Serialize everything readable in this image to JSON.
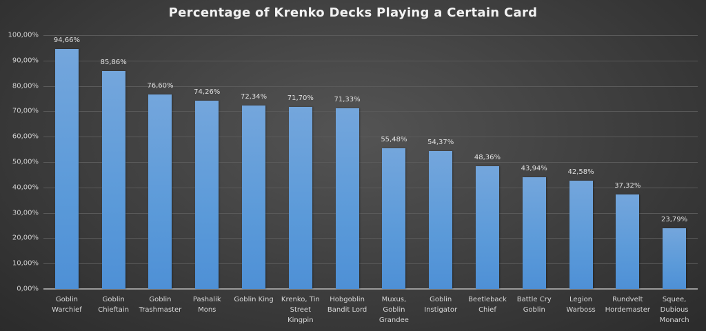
{
  "chart_data": {
    "type": "bar",
    "title": "Percentage of Krenko Decks Playing a Certain Card",
    "xlabel": "",
    "ylabel": "",
    "ylim": [
      0,
      100
    ],
    "grid": true,
    "legend": null,
    "bar_color": "#5b9bd5",
    "categories": [
      "Goblin Warchief",
      "Goblin Chieftain",
      "Goblin Trashmaster",
      "Pashalik Mons",
      "Goblin King",
      "Krenko, Tin Street Kingpin",
      "Hobgoblin Bandit Lord",
      "Muxus, Goblin Grandee",
      "Goblin Instigator",
      "Beetleback Chief",
      "Battle Cry Goblin",
      "Legion Warboss",
      "Rundvelt Hordemaster",
      "Squee, Dubious Monarch"
    ],
    "category_labels_display": [
      "Goblin\nWarchief",
      "Goblin\nChieftain",
      "Goblin\nTrashmaster",
      "Pashalik\nMons",
      "Goblin King",
      "Krenko, Tin\nStreet\nKingpin",
      "Hobgoblin\nBandit Lord",
      "Muxus,\nGoblin\nGrandee",
      "Goblin\nInstigator",
      "Beetleback\nChief",
      "Battle Cry\nGoblin",
      "Legion\nWarboss",
      "Rundvelt\nHordemaster",
      "Squee,\nDubious\nMonarch"
    ],
    "values": [
      94.66,
      85.86,
      76.6,
      74.26,
      72.34,
      71.7,
      71.33,
      55.48,
      54.37,
      48.36,
      43.94,
      42.58,
      37.32,
      23.79
    ],
    "data_labels": [
      "94,66%",
      "85,86%",
      "76,60%",
      "74,26%",
      "72,34%",
      "71,70%",
      "71,33%",
      "55,48%",
      "54,37%",
      "48,36%",
      "43,94%",
      "42,58%",
      "37,32%",
      "23,79%"
    ],
    "y_ticks": [
      "0,00%",
      "10,00%",
      "20,00%",
      "30,00%",
      "40,00%",
      "50,00%",
      "60,00%",
      "70,00%",
      "80,00%",
      "90,00%",
      "100,00%"
    ]
  }
}
